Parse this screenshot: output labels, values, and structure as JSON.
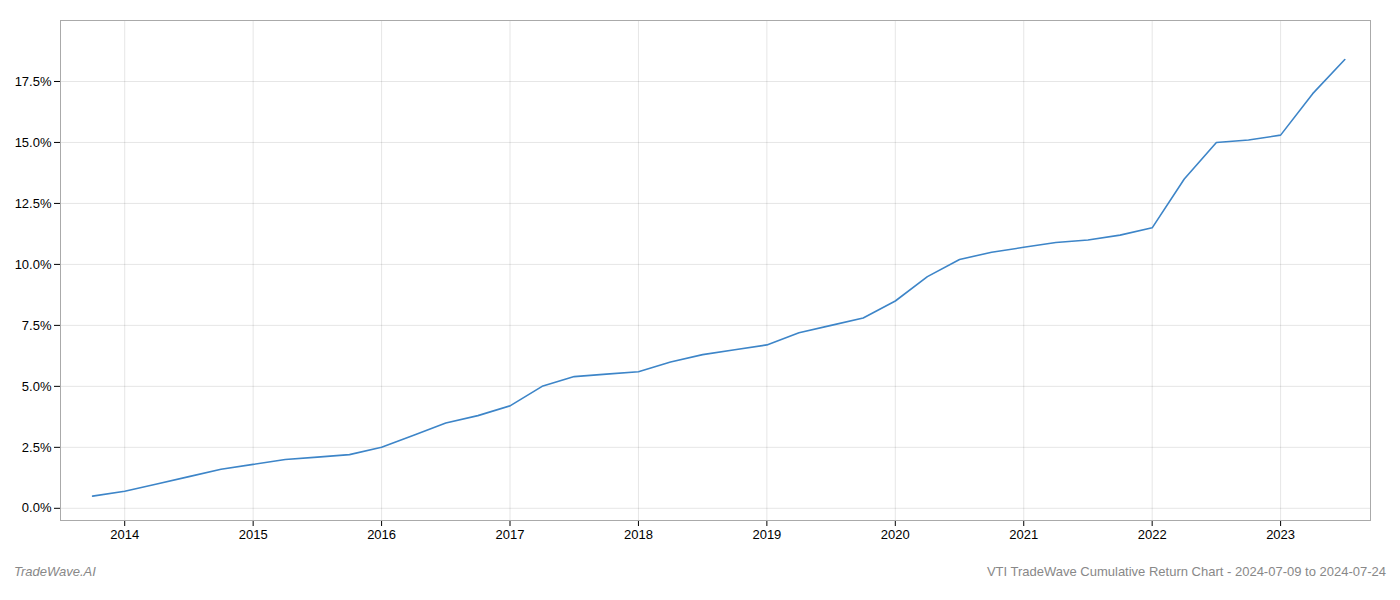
{
  "chart_data": {
    "type": "line",
    "x": [
      2013.75,
      2014.0,
      2014.25,
      2014.5,
      2014.75,
      2015.0,
      2015.25,
      2015.5,
      2015.75,
      2016.0,
      2016.25,
      2016.5,
      2016.75,
      2017.0,
      2017.25,
      2017.5,
      2017.75,
      2018.0,
      2018.25,
      2018.5,
      2018.75,
      2019.0,
      2019.25,
      2019.5,
      2019.75,
      2020.0,
      2020.25,
      2020.5,
      2020.75,
      2021.0,
      2021.25,
      2021.5,
      2021.75,
      2022.0,
      2022.25,
      2022.5,
      2022.75,
      2023.0,
      2023.25,
      2023.5
    ],
    "values": [
      0.5,
      0.7,
      1.0,
      1.3,
      1.6,
      1.8,
      2.0,
      2.1,
      2.2,
      2.5,
      3.0,
      3.5,
      3.8,
      4.2,
      5.0,
      5.4,
      5.5,
      5.6,
      6.0,
      6.3,
      6.5,
      6.7,
      7.2,
      7.5,
      7.8,
      8.5,
      9.5,
      10.2,
      10.5,
      10.7,
      10.9,
      11.0,
      11.2,
      11.5,
      13.5,
      15.0,
      15.1,
      15.3,
      17.0,
      18.4
    ],
    "color": "#3d85c8",
    "xlim": [
      2013.5,
      2023.7
    ],
    "xticks": [
      2014,
      2015,
      2016,
      2017,
      2018,
      2019,
      2020,
      2021,
      2022,
      2023
    ],
    "ylim": [
      -0.5,
      20
    ],
    "yticks": [
      {
        "value": 0.0,
        "label": "0.0%"
      },
      {
        "value": 2.5,
        "label": "2.5%"
      },
      {
        "value": 5.0,
        "label": "5.0%"
      },
      {
        "value": 7.5,
        "label": "7.5%"
      },
      {
        "value": 10.0,
        "label": "10.0%"
      },
      {
        "value": 12.5,
        "label": "12.5%"
      },
      {
        "value": 15.0,
        "label": "15.0%"
      },
      {
        "value": 17.5,
        "label": "17.5%"
      }
    ],
    "grid": true,
    "annotations": [
      "TradeWave.AI",
      "VTI TradeWave Cumulative Return Chart - 2024-07-09 to 2024-07-24"
    ]
  }
}
